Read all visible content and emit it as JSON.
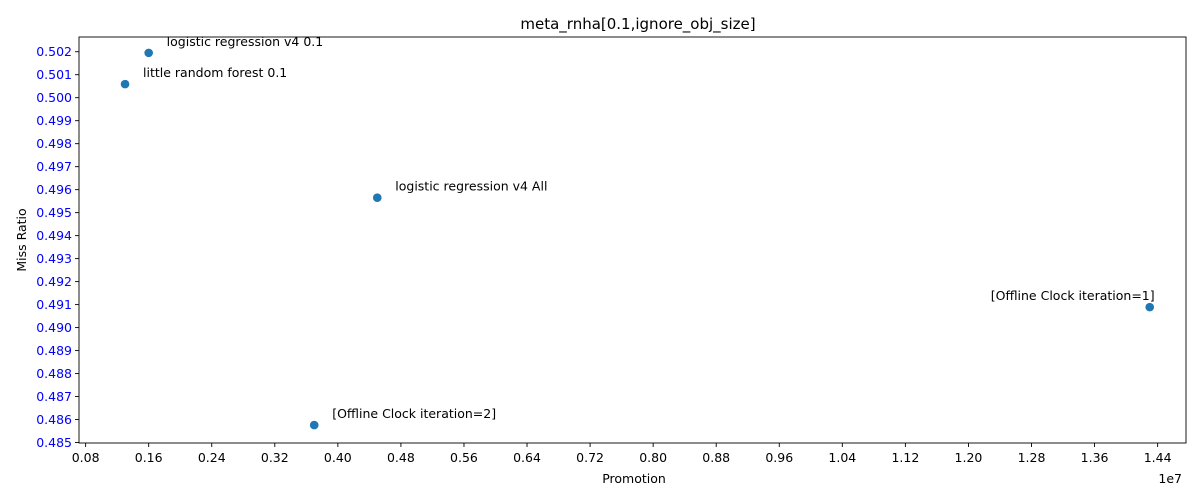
{
  "chart_data": {
    "type": "scatter",
    "title": "meta_rnha[0.1,ignore_obj_size]",
    "xlabel": "Promotion",
    "ylabel": "Miss Ratio",
    "x_offset_text": "1e7",
    "xlim": [
      0.0716,
      1.476
    ],
    "ylim": [
      0.48498,
      0.50264
    ],
    "xticks": [
      "0.08",
      "0.16",
      "0.24",
      "0.32",
      "0.40",
      "0.48",
      "0.56",
      "0.64",
      "0.72",
      "0.80",
      "0.88",
      "0.96",
      "1.04",
      "1.12",
      "1.20",
      "1.28",
      "1.36",
      "1.44"
    ],
    "yticks": [
      "0.485",
      "0.486",
      "0.487",
      "0.488",
      "0.489",
      "0.490",
      "0.491",
      "0.492",
      "0.493",
      "0.494",
      "0.495",
      "0.496",
      "0.497",
      "0.498",
      "0.499",
      "0.500",
      "0.501",
      "0.502"
    ],
    "ytick_color": "#0000ff",
    "point_color": "#1f77b4",
    "grid": false,
    "points": [
      {
        "x": 0.16,
        "y": 0.50195,
        "label": "logistic regression v4 0.1"
      },
      {
        "x": 0.13,
        "y": 0.50059,
        "label": "little random forest 0.1"
      },
      {
        "x": 0.45,
        "y": 0.49565,
        "label": "logistic regression v4 All"
      },
      {
        "x": 1.43,
        "y": 0.49089,
        "label": "[Offline Clock iteration=1]"
      },
      {
        "x": 0.37,
        "y": 0.48576,
        "label": "[Offline Clock iteration=2]"
      }
    ]
  }
}
